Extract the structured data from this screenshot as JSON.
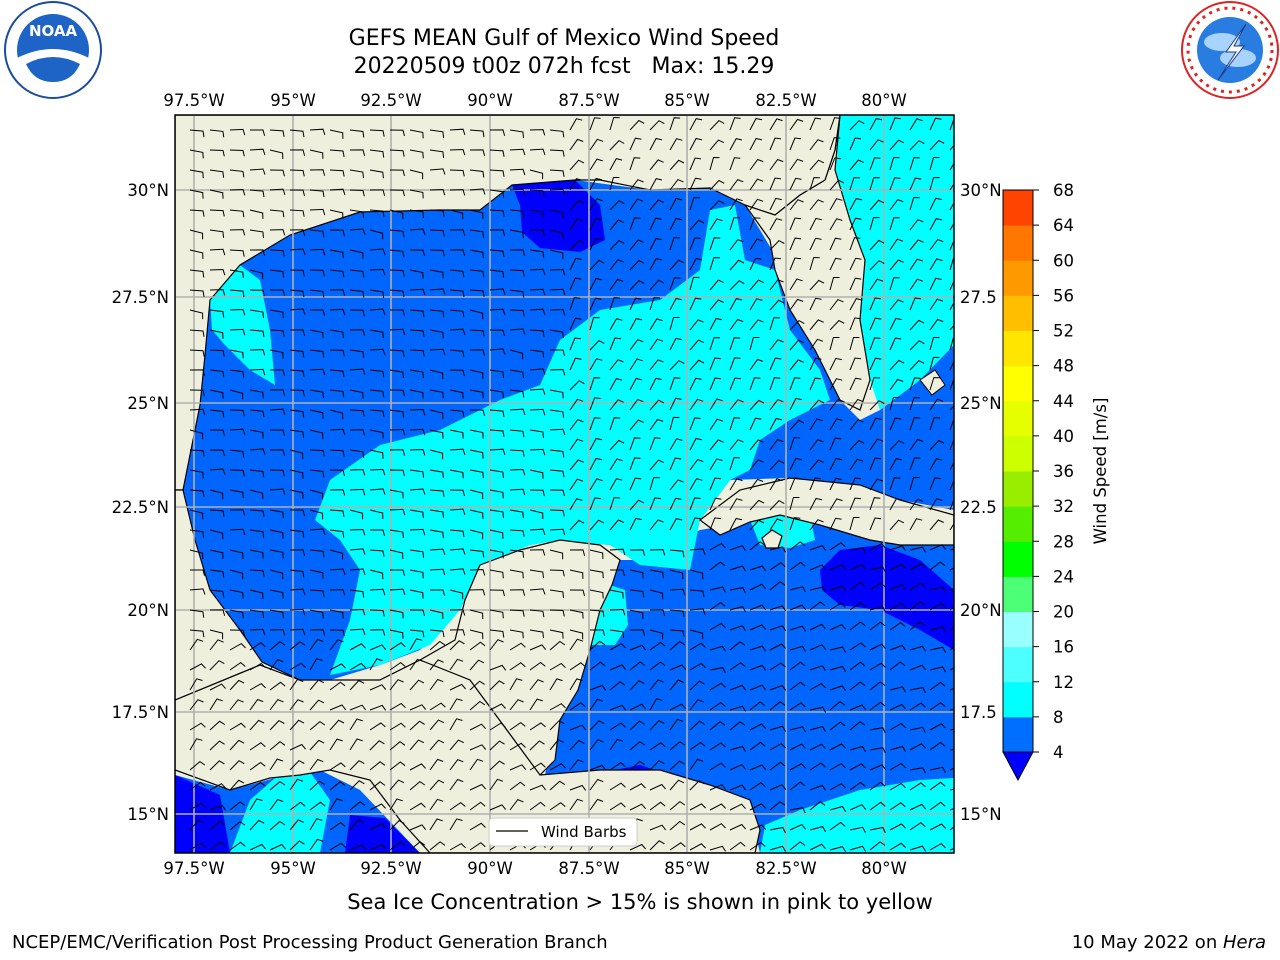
{
  "title": {
    "line1": "GEFS MEAN Gulf of Mexico Wind Speed",
    "line2": "20220509 t00z 072h fcst   Max: 15.29"
  },
  "footer": {
    "note": "Sea Ice Concentration > 15% is shown in pink to yellow",
    "credit": "NCEP/EMC/Verification Post Processing Product Generation Branch",
    "date": "10 May 2022 on ",
    "host": "Hera"
  },
  "logos": {
    "left": "NOAA",
    "left_ring": "NATIONAL OCEANIC AND ATMOSPHERIC ADMINISTRATION · U.S. DEPARTMENT OF COMMERCE",
    "right_ring": "NATIONAL WEATHER SERVICE"
  },
  "map": {
    "lon_labels": [
      "97.5°W",
      "95°W",
      "92.5°W",
      "90°W",
      "87.5°W",
      "85°W",
      "82.5°W",
      "80°W"
    ],
    "lat_labels_left": [
      "30°N",
      "27.5°N",
      "25°N",
      "22.5°N",
      "20°N",
      "17.5°N",
      "15°N"
    ],
    "lat_labels_right": [
      "30°N",
      "27.5",
      "25°N",
      "22.5",
      "20°N",
      "17.5",
      "15°N"
    ],
    "legend_label": "Wind Barbs",
    "colors": {
      "land": "#efefdd",
      "sea_low": "#0000ff",
      "sea_4_8": "#0066ff",
      "sea_8_12": "#00ffff",
      "sea_12_16": "#4dffff"
    }
  },
  "colorbar": {
    "label": "Wind Speed [m/s]",
    "ticks": [
      "4",
      "8",
      "12",
      "16",
      "20",
      "24",
      "28",
      "32",
      "36",
      "40",
      "44",
      "48",
      "52",
      "56",
      "60",
      "64",
      "68"
    ],
    "colors": [
      "#006eff",
      "#00ffff",
      "#4dffff",
      "#99ffff",
      "#4dff77",
      "#00ff00",
      "#55ee00",
      "#99ee00",
      "#ccff00",
      "#e6ff00",
      "#ffff00",
      "#ffe600",
      "#ffbf00",
      "#ff9900",
      "#ff7700",
      "#ff4400",
      "#ff0000"
    ],
    "extend_color": "#0000ff"
  }
}
